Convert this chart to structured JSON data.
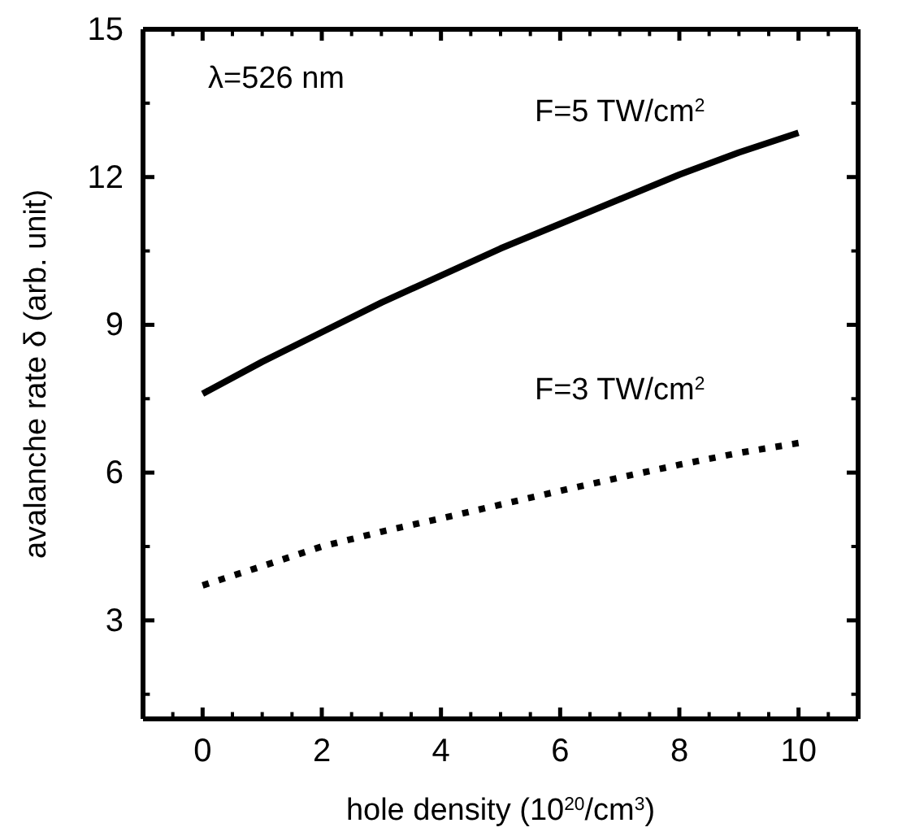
{
  "chart_data": {
    "type": "line",
    "xlabel": "hole density (10$^{20}$/cm$^{3}$)",
    "ylabel": "avalanche rate δ (arb. unit)",
    "annotations": [
      "λ=526 nm"
    ],
    "xlim": [
      -1,
      11
    ],
    "ylim": [
      1,
      15
    ],
    "xticks": [
      {
        "value": -0.5,
        "label": null
      },
      0,
      {
        "value": 0.5,
        "label": null
      },
      {
        "value": 1,
        "label": null
      },
      {
        "value": 1.5,
        "label": null
      },
      2,
      {
        "value": 2.5,
        "label": null
      },
      {
        "value": 3,
        "label": null
      },
      {
        "value": 3.5,
        "label": null
      },
      4,
      {
        "value": 4.5,
        "label": null
      },
      {
        "value": 5,
        "label": null
      },
      {
        "value": 5.5,
        "label": null
      },
      6,
      {
        "value": 6.5,
        "label": null
      },
      {
        "value": 7,
        "label": null
      },
      {
        "value": 7.5,
        "label": null
      },
      8,
      {
        "value": 8.5,
        "label": null
      },
      {
        "value": 9,
        "label": null
      },
      {
        "value": 9.5,
        "label": null
      },
      10,
      {
        "value": 10.5,
        "label": null
      }
    ],
    "yticks": [
      {
        "value": 1.5,
        "label": null
      },
      3,
      {
        "value": 4.5,
        "label": null
      },
      6,
      {
        "value": 7.5,
        "label": null
      },
      9,
      {
        "value": 10.5,
        "label": null
      },
      12,
      {
        "value": 13.5,
        "label": null
      },
      15
    ],
    "x": [
      0,
      1,
      2,
      3,
      4,
      5,
      6,
      7,
      8,
      9,
      10
    ],
    "series": [
      {
        "name": "F=5 TW/cm$^{2}$",
        "color": "#000000",
        "line_style": "solid",
        "values": [
          7.6,
          8.25,
          8.85,
          9.45,
          10.0,
          10.55,
          11.05,
          11.55,
          12.05,
          12.5,
          12.9
        ]
      },
      {
        "name": "F=3 TW/cm$^{2}$",
        "color": "#000000",
        "line_style": "dotted",
        "values": [
          3.71,
          4.1,
          4.5,
          4.8,
          5.07,
          5.35,
          5.63,
          5.9,
          6.16,
          6.4,
          6.6
        ]
      }
    ],
    "grid": false,
    "legend": false,
    "marker": "none"
  }
}
